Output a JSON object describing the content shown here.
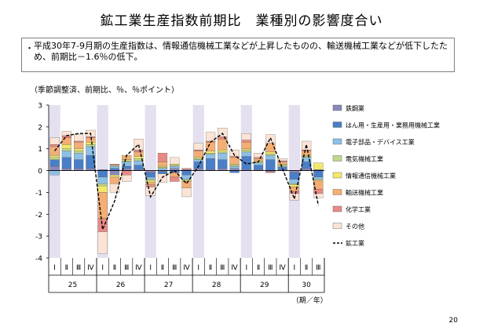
{
  "slide": {
    "title": "鉱工業生産指数前期比　業種別の影響度合い",
    "summary": "平成30年7-9月期の生産指数は、情報通信機械工業などが上昇したものの、輸送機械工業などが低下したため、前期比－1.6％の低下。",
    "unit_note": "（季節調整済、前期比、％、％ポイント）",
    "page_number": "20"
  },
  "chart_data": {
    "type": "bar",
    "stacked": true,
    "yunit": "％、％ポイント",
    "ylim": [
      -4,
      3
    ],
    "yticks": [
      "3",
      "2",
      "1",
      "0",
      "-1",
      "-2",
      "-3",
      "-4"
    ],
    "quarters": [
      "Ⅰ",
      "Ⅱ",
      "Ⅲ",
      "Ⅳ",
      "Ⅰ",
      "Ⅱ",
      "Ⅲ",
      "Ⅳ",
      "Ⅰ",
      "Ⅱ",
      "Ⅲ",
      "Ⅳ",
      "Ⅰ",
      "Ⅱ",
      "Ⅲ",
      "Ⅳ",
      "Ⅰ",
      "Ⅱ",
      "Ⅲ",
      "Ⅳ",
      "Ⅰ",
      "Ⅱ",
      "Ⅲ"
    ],
    "years": [
      {
        "label": "25",
        "quarters": 4
      },
      {
        "label": "26",
        "quarters": 4
      },
      {
        "label": "27",
        "quarters": 4
      },
      {
        "label": "28",
        "quarters": 4
      },
      {
        "label": "29",
        "quarters": 4
      },
      {
        "label": "30",
        "quarters": 3
      }
    ],
    "period_unit": "（期／年）",
    "shaded_quarter": "Ⅰ",
    "series": [
      {
        "name": "鉄鋼業",
        "color": "#8888bb",
        "values": [
          0.2,
          0.1,
          0.1,
          0.1,
          0.05,
          -0.2,
          0.1,
          0.05,
          -0.1,
          -0.05,
          0.1,
          0.05,
          0.1,
          0.05,
          0.1,
          0.1,
          0.05,
          0.05,
          -0.05,
          0.05,
          -0.1,
          0.1,
          0.05
        ]
      },
      {
        "name": "はん用・生産用・業務用機械工業",
        "color": "#4a7fc8",
        "values": [
          0.3,
          0.5,
          0.4,
          0.6,
          -0.3,
          0.1,
          0.1,
          0.2,
          -0.2,
          -0.1,
          -0.1,
          -0.2,
          0.3,
          0.5,
          0.4,
          -0.1,
          0.6,
          0.2,
          0.5,
          0.1,
          -0.3,
          0.3,
          -0.3
        ]
      },
      {
        "name": "電子部品・デバイス工業",
        "color": "#8ec0e6",
        "values": [
          -0.2,
          0.3,
          0.3,
          0.4,
          -0.3,
          0.1,
          0.2,
          0.2,
          -0.1,
          0.1,
          0.1,
          -0.2,
          0.1,
          0.2,
          0.3,
          0.1,
          0.2,
          0.1,
          0.2,
          0.05,
          -0.2,
          0.2,
          -0.1
        ]
      },
      {
        "name": "電気機械工業",
        "color": "#c0d88c",
        "values": [
          0.1,
          0.1,
          0.1,
          0.1,
          -0.1,
          0.05,
          0.05,
          0.1,
          -0.05,
          0.05,
          0.05,
          -0.05,
          0.05,
          0.05,
          0.05,
          0.05,
          0.1,
          0.05,
          0.05,
          0.05,
          -0.05,
          0.05,
          -0.05
        ]
      },
      {
        "name": "情報通信機械工業",
        "color": "#f2e86a",
        "values": [
          0.1,
          0.2,
          0.1,
          0.1,
          -0.3,
          -0.1,
          0.05,
          0.1,
          -0.1,
          0.05,
          0.05,
          -0.05,
          0.05,
          0.1,
          0.1,
          0.05,
          0.05,
          0.05,
          0.1,
          0.05,
          -0.1,
          0.05,
          0.3
        ]
      },
      {
        "name": "輸送機械工業",
        "color": "#f4ae74",
        "values": [
          0.4,
          0.3,
          0.3,
          0.2,
          -1.2,
          -0.3,
          0.2,
          0.2,
          -0.1,
          0.2,
          -0.2,
          -0.3,
          0.3,
          0.4,
          0.5,
          0.3,
          0.3,
          0.1,
          0.4,
          0.1,
          -0.2,
          0.2,
          -0.4
        ]
      },
      {
        "name": "化学工業",
        "color": "#e88a84",
        "values": [
          0.1,
          0.1,
          0.05,
          0.05,
          -0.6,
          0.05,
          -0.2,
          0.1,
          -0.1,
          0.4,
          -0.2,
          0.05,
          0.05,
          0.05,
          0.1,
          0.05,
          0.1,
          0.05,
          -0.05,
          0.05,
          -0.1,
          0.05,
          -0.2
        ]
      },
      {
        "name": "その他",
        "color": "#fbe4d5",
        "values": [
          0.3,
          0.2,
          0.3,
          0.3,
          -1.0,
          -0.4,
          -0.3,
          0.5,
          -0.4,
          -0.4,
          0.3,
          -0.4,
          0.3,
          0.4,
          0.4,
          0.3,
          0.3,
          0.2,
          0.4,
          0.1,
          -0.3,
          0.4,
          -0.2
        ]
      }
    ],
    "line": {
      "name": "鉱工業",
      "color": "#000000",
      "values": [
        0.9,
        1.6,
        1.7,
        1.7,
        -2.7,
        -1.4,
        0.7,
        1.2,
        -1.2,
        -0.3,
        0.0,
        -0.6,
        0.2,
        1.3,
        1.7,
        0.7,
        0.3,
        0.4,
        1.5,
        0.1,
        -1.3,
        1.2,
        -1.6
      ]
    }
  }
}
